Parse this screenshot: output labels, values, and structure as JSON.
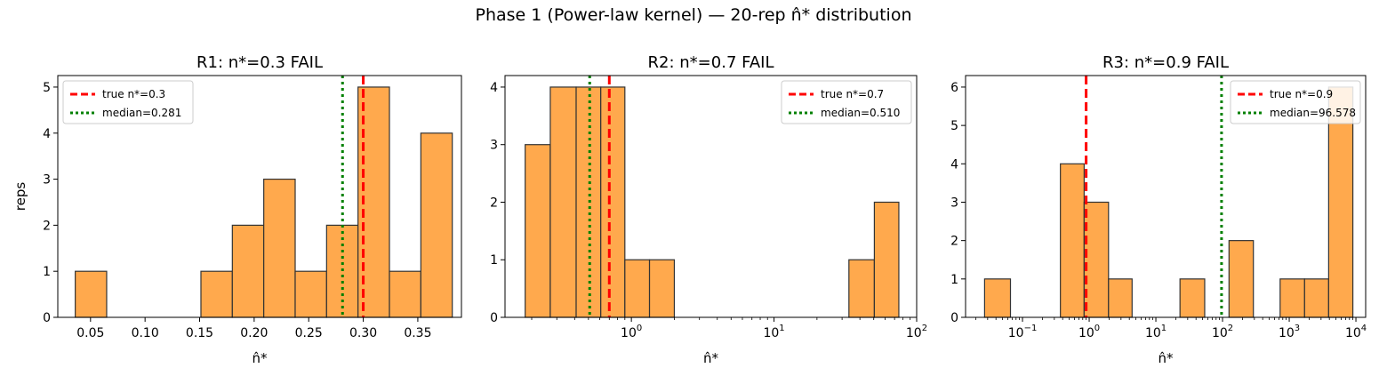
{
  "figure": {
    "suptitle": "Phase 1 (Power-law kernel) — 20-rep n̂* distribution"
  },
  "colors": {
    "bar_fill": "#ffa94d",
    "bar_edge": "#333333",
    "true_line": "#ff0000",
    "median_line": "#008000"
  },
  "chart_data": [
    {
      "type": "bar",
      "title": "R1: n*=0.3  FAIL",
      "xlabel": "n̂*",
      "ylabel": "reps",
      "xscale": "linear",
      "xlim": [
        0.02,
        0.39
      ],
      "ylim": [
        0,
        5.25
      ],
      "xticks": [
        0.05,
        0.1,
        0.15,
        0.2,
        0.25,
        0.3,
        0.35
      ],
      "xtick_labels": [
        "0.05",
        "0.10",
        "0.15",
        "0.20",
        "0.25",
        "0.30",
        "0.35"
      ],
      "yticks": [
        0,
        1,
        2,
        3,
        4,
        5
      ],
      "bins": [
        {
          "x0": 0.036,
          "x1": 0.0648,
          "count": 1
        },
        {
          "x0": 0.0648,
          "x1": 0.0936,
          "count": 0
        },
        {
          "x0": 0.0936,
          "x1": 0.1224,
          "count": 0
        },
        {
          "x0": 0.1224,
          "x1": 0.1512,
          "count": 0
        },
        {
          "x0": 0.1512,
          "x1": 0.18,
          "count": 1
        },
        {
          "x0": 0.18,
          "x1": 0.2088,
          "count": 2
        },
        {
          "x0": 0.2088,
          "x1": 0.2376,
          "count": 3
        },
        {
          "x0": 0.2376,
          "x1": 0.2664,
          "count": 1
        },
        {
          "x0": 0.2664,
          "x1": 0.2952,
          "count": 2
        },
        {
          "x0": 0.2952,
          "x1": 0.324,
          "count": 5
        },
        {
          "x0": 0.324,
          "x1": 0.3528,
          "count": 1
        },
        {
          "x0": 0.3528,
          "x1": 0.3816,
          "count": 4
        }
      ],
      "true_value": 0.3,
      "median": 0.281,
      "legend": {
        "position": "upper left",
        "entries": [
          "true n*=0.3",
          "median=0.281"
        ]
      }
    },
    {
      "type": "bar",
      "title": "R2: n*=0.7  FAIL",
      "xlabel": "n̂*",
      "ylabel": "",
      "xscale": "log",
      "xlim": [
        0.13,
        100
      ],
      "ylim": [
        0,
        4.2
      ],
      "xticks": [
        1,
        10,
        100
      ],
      "xtick_labels": [
        [
          "10",
          "0"
        ],
        [
          "10",
          "1"
        ],
        [
          "10",
          "2"
        ]
      ],
      "yticks": [
        0,
        1,
        2,
        3,
        4
      ],
      "bins": [
        {
          "x0": 0.18,
          "x1": 0.27,
          "count": 3
        },
        {
          "x0": 0.27,
          "x1": 0.41,
          "count": 4
        },
        {
          "x0": 0.41,
          "x1": 0.61,
          "count": 4
        },
        {
          "x0": 0.61,
          "x1": 0.9,
          "count": 4
        },
        {
          "x0": 0.9,
          "x1": 1.34,
          "count": 1
        },
        {
          "x0": 1.34,
          "x1": 2.0,
          "count": 1
        },
        {
          "x0": 33.5,
          "x1": 50.5,
          "count": 1
        },
        {
          "x0": 50.5,
          "x1": 75.0,
          "count": 2
        }
      ],
      "true_value": 0.7,
      "median": 0.51,
      "legend": {
        "position": "upper right",
        "entries": [
          "true n*=0.7",
          "median=0.510"
        ]
      }
    },
    {
      "type": "bar",
      "title": "R3: n*=0.9  FAIL",
      "xlabel": "n̂*",
      "ylabel": "",
      "xscale": "log",
      "xlim": [
        0.014,
        14000
      ],
      "ylim": [
        0,
        6.3
      ],
      "xticks": [
        0.1,
        1,
        10,
        100,
        1000,
        10000
      ],
      "xtick_labels": [
        [
          "10",
          "−1"
        ],
        [
          "10",
          "0"
        ],
        [
          "10",
          "1"
        ],
        [
          "10",
          "2"
        ],
        [
          "10",
          "3"
        ],
        [
          "10",
          "4"
        ]
      ],
      "yticks": [
        0,
        1,
        2,
        3,
        4,
        5,
        6
      ],
      "bins": [
        {
          "x0": 0.027,
          "x1": 0.066,
          "count": 1
        },
        {
          "x0": 0.37,
          "x1": 0.84,
          "count": 4
        },
        {
          "x0": 0.84,
          "x1": 1.95,
          "count": 3
        },
        {
          "x0": 1.95,
          "x1": 4.4,
          "count": 1
        },
        {
          "x0": 23,
          "x1": 54,
          "count": 1
        },
        {
          "x0": 125,
          "x1": 290,
          "count": 2
        },
        {
          "x0": 730,
          "x1": 1700,
          "count": 1
        },
        {
          "x0": 1700,
          "x1": 3900,
          "count": 1
        },
        {
          "x0": 3900,
          "x1": 9000,
          "count": 6
        }
      ],
      "true_value": 0.9,
      "median": 96.578,
      "legend": {
        "position": "upper right",
        "entries": [
          "true n*=0.9",
          "median=96.578"
        ]
      }
    }
  ]
}
